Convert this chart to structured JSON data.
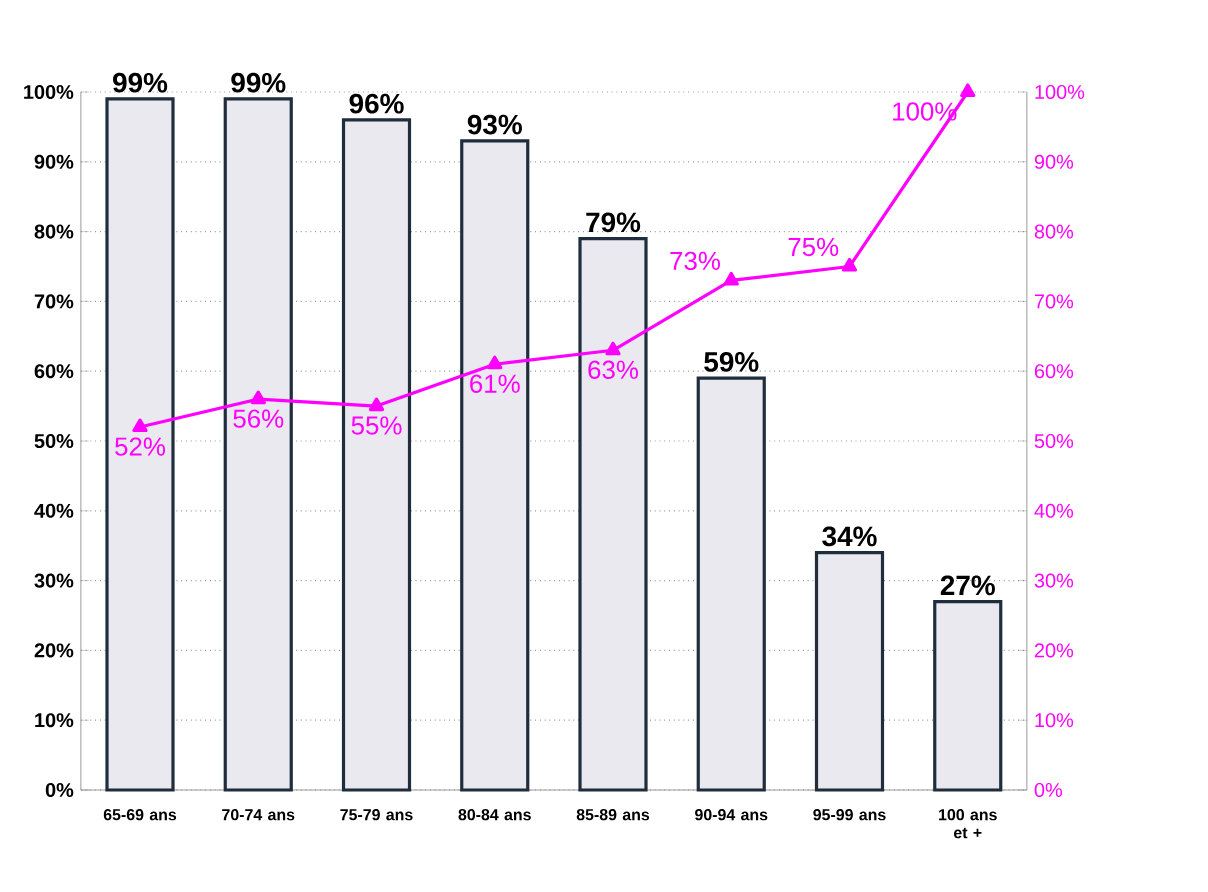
{
  "chart_data": {
    "type": "bar",
    "categories": [
      "65-69 ans",
      "70-74 ans",
      "75-79 ans",
      "80-84 ans",
      "85-89 ans",
      "90-94 ans",
      "95-99 ans",
      "100 ans et +"
    ],
    "series": [
      {
        "color": "#1f2d3d",
        "values": [
          99,
          99,
          96,
          93,
          79,
          59,
          34,
          27
        ],
        "value_labels": [
          "99%",
          "99%",
          "96%",
          "93%",
          "79%",
          "59%",
          "34%",
          "27%"
        ]
      },
      {
        "type": "line",
        "axis": "y2",
        "color": "#ff00ff",
        "marker": "triangle",
        "values": [
          52,
          56,
          55,
          61,
          63,
          73,
          75,
          100
        ],
        "value_labels": [
          "52%",
          "56%",
          "55%",
          "61%",
          "63%",
          "73%",
          "75%",
          "100%"
        ]
      }
    ],
    "ylim": [
      0,
      100
    ],
    "yticks": [
      {
        "value": 0,
        "label": "0%"
      },
      {
        "value": 10,
        "label": "10%"
      },
      {
        "value": 20,
        "label": "20%"
      },
      {
        "value": 30,
        "label": "30%"
      },
      {
        "value": 40,
        "label": "40%"
      },
      {
        "value": 50,
        "label": "50%"
      },
      {
        "value": 60,
        "label": "60%"
      },
      {
        "value": 70,
        "label": "70%"
      },
      {
        "value": 80,
        "label": "80%"
      },
      {
        "value": 90,
        "label": "90%"
      },
      {
        "value": 100,
        "label": "100%"
      }
    ],
    "y2lim": [
      0,
      100
    ],
    "y2ticks": [
      {
        "value": 0,
        "label": "0%"
      },
      {
        "value": 10,
        "label": "10%"
      },
      {
        "value": 20,
        "label": "20%"
      },
      {
        "value": 30,
        "label": "30%"
      },
      {
        "value": 40,
        "label": "40%"
      },
      {
        "value": 50,
        "label": "50%"
      },
      {
        "value": 60,
        "label": "60%"
      },
      {
        "value": 70,
        "label": "70%"
      },
      {
        "value": 80,
        "label": "80%"
      },
      {
        "value": 90,
        "label": "90%"
      },
      {
        "value": 100,
        "label": "100%"
      }
    ],
    "grid": "y"
  }
}
